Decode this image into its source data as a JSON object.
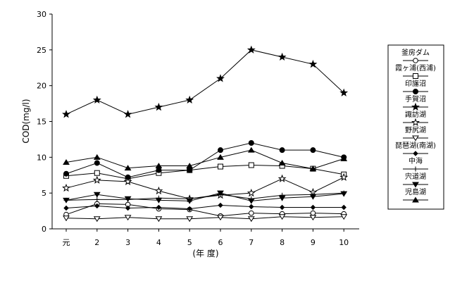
{
  "chart_data": {
    "type": "line",
    "ylabel": "COD(mg/l)",
    "xlabel": "(年 度)",
    "categories": [
      "元",
      "2",
      "3",
      "4",
      "5",
      "6",
      "7",
      "8",
      "9",
      "10"
    ],
    "ylim": [
      0,
      30
    ],
    "yticks": [
      "0",
      "5",
      "10",
      "15",
      "20",
      "25",
      "30"
    ],
    "legend_position": "right",
    "grid": false,
    "series": [
      {
        "name": "釜房ダム",
        "marker": "circle-open",
        "values": [
          2.0,
          3.5,
          3.4,
          2.8,
          2.7,
          1.8,
          2.2,
          2.1,
          2.2,
          2.1
        ]
      },
      {
        "name": "霞ヶ浦(西浦)",
        "marker": "square-open",
        "values": [
          7.4,
          7.8,
          7.0,
          7.8,
          8.2,
          8.7,
          8.9,
          8.8,
          8.4,
          7.6
        ]
      },
      {
        "name": "印旛沼",
        "marker": "circle-filled",
        "values": [
          7.7,
          9.2,
          7.2,
          8.2,
          8.2,
          11.0,
          12.0,
          11.0,
          11.0,
          10.0
        ]
      },
      {
        "name": "手賀沼",
        "marker": "star-filled",
        "values": [
          16.0,
          18.0,
          16.0,
          17.0,
          18.0,
          21.0,
          25.0,
          24.0,
          23.0,
          19.0
        ]
      },
      {
        "name": "諏訪湖",
        "marker": "star-open",
        "values": [
          5.7,
          6.8,
          6.6,
          5.3,
          4.2,
          4.7,
          5.0,
          7.0,
          5.1,
          7.2
        ]
      },
      {
        "name": "野尻湖",
        "marker": "triangle-down-open",
        "values": [
          1.5,
          1.4,
          1.6,
          1.4,
          1.4,
          1.6,
          1.4,
          1.7,
          1.6,
          1.7
        ]
      },
      {
        "name": "琵琶湖(南湖)",
        "marker": "diamond-filled",
        "values": [
          2.9,
          3.2,
          2.9,
          3.0,
          2.8,
          3.3,
          3.1,
          3.0,
          3.0,
          3.0
        ]
      },
      {
        "name": "中海",
        "marker": "plus",
        "values": [
          4.0,
          4.1,
          4.1,
          4.3,
          4.2,
          4.8,
          4.2,
          4.7,
          4.8,
          5.0
        ]
      },
      {
        "name": "宍道湖",
        "marker": "triangle-down-filled",
        "values": [
          4.0,
          4.8,
          4.2,
          4.0,
          3.9,
          5.0,
          3.9,
          4.3,
          4.5,
          4.9
        ]
      },
      {
        "name": "児島湖",
        "marker": "triangle-up-filled",
        "values": [
          9.3,
          10.0,
          8.5,
          8.8,
          8.8,
          10.0,
          11.0,
          9.2,
          8.4,
          9.8
        ]
      }
    ]
  }
}
